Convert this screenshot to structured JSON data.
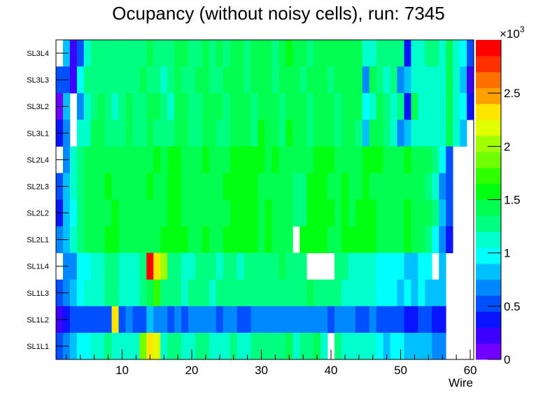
{
  "chart_data": {
    "type": "heatmap",
    "title": "Ocupancy (without noisy cells), run: 7345",
    "xlabel": "Wire",
    "ylabel": "",
    "xlim": [
      0.5,
      60.5
    ],
    "x_ticks": [
      "10",
      "20",
      "30",
      "40",
      "50",
      "60"
    ],
    "x_tick_values": [
      10,
      20,
      30,
      40,
      50,
      60
    ],
    "zlim": [
      0,
      3000
    ],
    "z_multiplier_label": "×10",
    "z_multiplier_exp": "3",
    "z_ticks": [
      "0",
      "0.5",
      "1",
      "1.5",
      "2",
      "2.5"
    ],
    "z_tick_values": [
      0,
      500,
      1000,
      1500,
      2000,
      2500
    ],
    "palette": [
      "#7000ff",
      "#3d00ff",
      "#0a14ff",
      "#0050ff",
      "#0088ff",
      "#00c0ff",
      "#00ffff",
      "#00ffcc",
      "#00ff80",
      "#00ff50",
      "#00ff10",
      "#30ff00",
      "#70ff00",
      "#a0ff00",
      "#e0ff00",
      "#ffe600",
      "#ffa000",
      "#ff7000",
      "#ff3000",
      "#ff0000"
    ],
    "rows": [
      {
        "label": "SL3L4",
        "values": [
          0,
          825,
          225,
          525,
          1125,
          1275,
          1275,
          1275,
          1275,
          1275,
          1275,
          1275,
          1275,
          1425,
          1275,
          1275,
          1275,
          1425,
          1425,
          1275,
          1275,
          1425,
          1275,
          1425,
          1275,
          1425,
          1425,
          1275,
          1425,
          1425,
          1425,
          1275,
          1425,
          1575,
          1425,
          1425,
          1275,
          1425,
          1425,
          1425,
          1425,
          1425,
          1425,
          1425,
          1125,
          1125,
          1275,
          1275,
          1275,
          1275,
          375,
          1125,
          1125,
          1275,
          1275,
          1125,
          1425,
          1125,
          975,
          525
        ]
      },
      {
        "label": "SL3L3",
        "values": [
          525,
          525,
          225,
          975,
          1275,
          1275,
          1275,
          1275,
          1275,
          1275,
          1275,
          1275,
          1425,
          1275,
          1275,
          1125,
          1275,
          1425,
          1275,
          1275,
          1425,
          1425,
          1275,
          1275,
          1425,
          1425,
          1425,
          1275,
          1425,
          1425,
          1425,
          1275,
          1425,
          1425,
          1425,
          1275,
          1425,
          1425,
          1425,
          1275,
          1425,
          1425,
          1425,
          1425,
          675,
          1425,
          1275,
          1125,
          1275,
          675,
          825,
          1125,
          1125,
          1125,
          1125,
          1125,
          1425,
          1125,
          825,
          225
        ]
      },
      {
        "label": "SL3L2",
        "values": [
          75,
          825,
          0,
          675,
          1125,
          1275,
          1425,
          1275,
          1125,
          1275,
          1425,
          1275,
          1275,
          1425,
          1425,
          1275,
          1125,
          1425,
          1425,
          1275,
          1275,
          1425,
          1425,
          1425,
          1275,
          1425,
          1425,
          1425,
          1275,
          1425,
          1425,
          1425,
          1275,
          1425,
          1425,
          1425,
          1275,
          1425,
          1425,
          1425,
          1275,
          1425,
          1425,
          1425,
          975,
          1125,
          1425,
          1275,
          1125,
          1275,
          375,
          1425,
          1125,
          1125,
          1125,
          1125,
          1425,
          1125,
          975,
          375
        ]
      },
      {
        "label": "SL3L1",
        "values": [
          375,
          675,
          0,
          1125,
          1125,
          1425,
          1425,
          1275,
          1275,
          1275,
          1425,
          1275,
          1275,
          1425,
          1275,
          1275,
          1275,
          1425,
          1425,
          1275,
          1275,
          1425,
          1425,
          1275,
          1275,
          1425,
          1425,
          1425,
          1275,
          1575,
          1425,
          1425,
          1275,
          1575,
          1425,
          1425,
          1275,
          1425,
          1425,
          1425,
          1275,
          1425,
          1425,
          1275,
          825,
          1425,
          1425,
          1275,
          1125,
          675,
          825,
          1125,
          1125,
          1125,
          1125,
          1125,
          1425,
          1125,
          825,
          0
        ]
      },
      {
        "label": "SL2L4",
        "values": [
          0,
          675,
          1125,
          1275,
          1425,
          1425,
          1425,
          1425,
          1425,
          1425,
          1425,
          1425,
          1425,
          1425,
          1575,
          1425,
          1575,
          1575,
          1425,
          1425,
          1425,
          1575,
          1425,
          1425,
          1425,
          1575,
          1575,
          1575,
          1575,
          1575,
          1425,
          1575,
          1425,
          1425,
          1425,
          1425,
          1425,
          1575,
          1575,
          1575,
          1425,
          1425,
          1425,
          1425,
          1575,
          1575,
          1575,
          1425,
          1425,
          1425,
          1575,
          1425,
          1425,
          1425,
          1275,
          975,
          525,
          0,
          0,
          0
        ]
      },
      {
        "label": "SL2L3",
        "values": [
          525,
          825,
          1125,
          1275,
          1425,
          1425,
          1425,
          1575,
          1425,
          1425,
          1425,
          1425,
          1425,
          1575,
          1425,
          1425,
          1575,
          1575,
          1425,
          1425,
          1425,
          1425,
          1425,
          1425,
          1575,
          1575,
          1575,
          1575,
          1575,
          1425,
          1425,
          1425,
          1425,
          1425,
          1275,
          1275,
          1575,
          1575,
          1575,
          1425,
          1425,
          1575,
          1425,
          1425,
          1575,
          1425,
          1425,
          1425,
          1425,
          1425,
          1425,
          1425,
          1425,
          1275,
          1125,
          675,
          525,
          0,
          0,
          0
        ]
      },
      {
        "label": "SL2L2",
        "values": [
          375,
          825,
          975,
          1275,
          1425,
          1425,
          1425,
          1425,
          1575,
          1425,
          1425,
          1425,
          1425,
          1425,
          1425,
          1425,
          1575,
          1575,
          1425,
          1425,
          1425,
          1425,
          1425,
          1425,
          1425,
          1575,
          1575,
          1575,
          1575,
          1425,
          1575,
          1425,
          1425,
          1425,
          1275,
          1275,
          1575,
          1575,
          1575,
          1575,
          1425,
          1575,
          1425,
          1575,
          1575,
          1575,
          1425,
          1425,
          1425,
          1425,
          1575,
          1425,
          1425,
          1425,
          1275,
          825,
          525,
          0,
          0,
          0
        ]
      },
      {
        "label": "SL2L1",
        "values": [
          675,
          825,
          1125,
          1275,
          1425,
          1425,
          1425,
          1575,
          1575,
          1425,
          1425,
          1425,
          1425,
          1425,
          1425,
          1575,
          1575,
          1575,
          1575,
          1425,
          1425,
          1575,
          1425,
          1425,
          1575,
          1575,
          1575,
          1575,
          1575,
          1425,
          1575,
          1425,
          1425,
          1425,
          0,
          1575,
          1575,
          1575,
          1575,
          1425,
          1425,
          1575,
          1575,
          1575,
          1575,
          1575,
          1425,
          1425,
          1425,
          1425,
          1575,
          1425,
          1425,
          1275,
          975,
          675,
          375,
          0,
          0,
          0
        ]
      },
      {
        "label": "SL1L4",
        "values": [
          0,
          675,
          675,
          975,
          975,
          1125,
          1125,
          1275,
          1275,
          1125,
          1125,
          1125,
          1275,
          2925,
          2325,
          2025,
          1275,
          1275,
          1125,
          1125,
          1275,
          1275,
          1275,
          1125,
          1275,
          1275,
          1125,
          1275,
          1275,
          1275,
          1275,
          1275,
          1425,
          1275,
          1275,
          1275,
          0,
          0,
          0,
          0,
          1275,
          1275,
          1125,
          1125,
          1125,
          1125,
          975,
          975,
          975,
          975,
          825,
          825,
          975,
          975,
          0,
          825,
          0,
          0,
          0,
          0
        ]
      },
      {
        "label": "SL1L3",
        "values": [
          525,
          675,
          825,
          975,
          1125,
          1125,
          1125,
          1275,
          1275,
          1125,
          1125,
          1125,
          1275,
          1425,
          1725,
          1275,
          1275,
          1275,
          1125,
          1275,
          1275,
          1275,
          1125,
          1275,
          1275,
          1275,
          1275,
          1275,
          1275,
          1275,
          1275,
          1275,
          1275,
          1275,
          1275,
          1275,
          1425,
          1275,
          1275,
          1275,
          1275,
          1125,
          1125,
          1125,
          1125,
          1125,
          975,
          975,
          975,
          825,
          975,
          825,
          975,
          825,
          825,
          825,
          0,
          0,
          0,
          0
        ]
      },
      {
        "label": "SL1L2",
        "values": [
          225,
          375,
          525,
          525,
          525,
          525,
          525,
          525,
          2325,
          525,
          675,
          525,
          525,
          825,
          675,
          675,
          525,
          675,
          525,
          675,
          675,
          675,
          675,
          525,
          675,
          675,
          525,
          525,
          675,
          675,
          675,
          675,
          675,
          675,
          675,
          675,
          675,
          675,
          675,
          525,
          675,
          675,
          675,
          525,
          525,
          675,
          525,
          525,
          525,
          525,
          375,
          375,
          525,
          525,
          375,
          375,
          0,
          0,
          0,
          0
        ]
      },
      {
        "label": "SL1L1",
        "values": [
          525,
          675,
          825,
          975,
          975,
          1125,
          1125,
          1275,
          1125,
          1125,
          1125,
          1125,
          1875,
          2325,
          2175,
          1125,
          1275,
          1275,
          1125,
          1125,
          1275,
          1275,
          1125,
          1125,
          1125,
          1275,
          1125,
          1125,
          1275,
          1275,
          1275,
          1275,
          1275,
          1425,
          1125,
          1275,
          1275,
          1425,
          1125,
          0,
          1275,
          1125,
          1125,
          1125,
          1125,
          1125,
          975,
          825,
          975,
          975,
          825,
          825,
          825,
          825,
          675,
          675,
          0,
          0,
          0,
          0
        ]
      }
    ]
  }
}
